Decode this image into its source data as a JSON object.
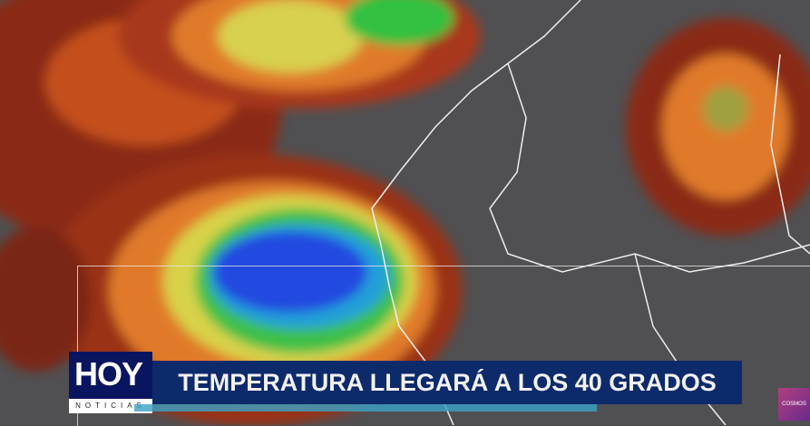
{
  "broadcast": {
    "logo_main": "HOY",
    "logo_sub": "NOTICIAS",
    "headline": "TEMPERATURA LLEGARÁ A LOS 40 GRADOS",
    "channel_bug": "COSMOS"
  },
  "colors": {
    "headline_bar": "#0d2a6a",
    "logo_bg": "#0a1560",
    "accent_strip": "#3aa3c8"
  }
}
